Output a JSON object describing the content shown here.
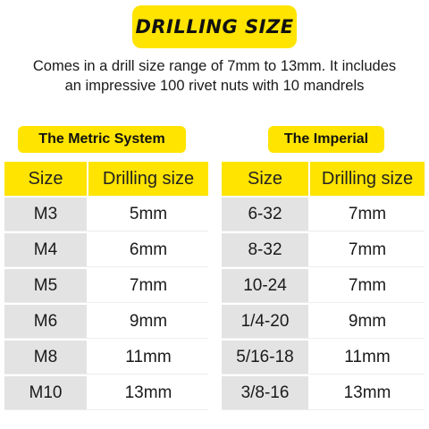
{
  "title": "DRILLING SIZE",
  "description": {
    "line1": "Comes in a drill size range of 7mm to 13mm. It includes",
    "line2": "an impressive 100 rivet nuts with 10 mandrels"
  },
  "colors": {
    "accent": "#ffe400",
    "size_cell": "#e3e3e3",
    "text": "#1a1a1a"
  },
  "metric": {
    "heading": "The Metric System",
    "columns": [
      "Size",
      "Drilling size"
    ],
    "rows": [
      [
        "M3",
        "5mm"
      ],
      [
        "M4",
        "6mm"
      ],
      [
        "M5",
        "7mm"
      ],
      [
        "M6",
        "9mm"
      ],
      [
        "M8",
        "11mm"
      ],
      [
        "M10",
        "13mm"
      ]
    ]
  },
  "imperial": {
    "heading": "The Imperial",
    "columns": [
      "Size",
      "Drilling size"
    ],
    "rows": [
      [
        "6-32",
        "7mm"
      ],
      [
        "8-32",
        "7mm"
      ],
      [
        "10-24",
        "7mm"
      ],
      [
        "1/4-20",
        "9mm"
      ],
      [
        "5/16-18",
        "11mm"
      ],
      [
        "3/8-16",
        "13mm"
      ]
    ]
  }
}
